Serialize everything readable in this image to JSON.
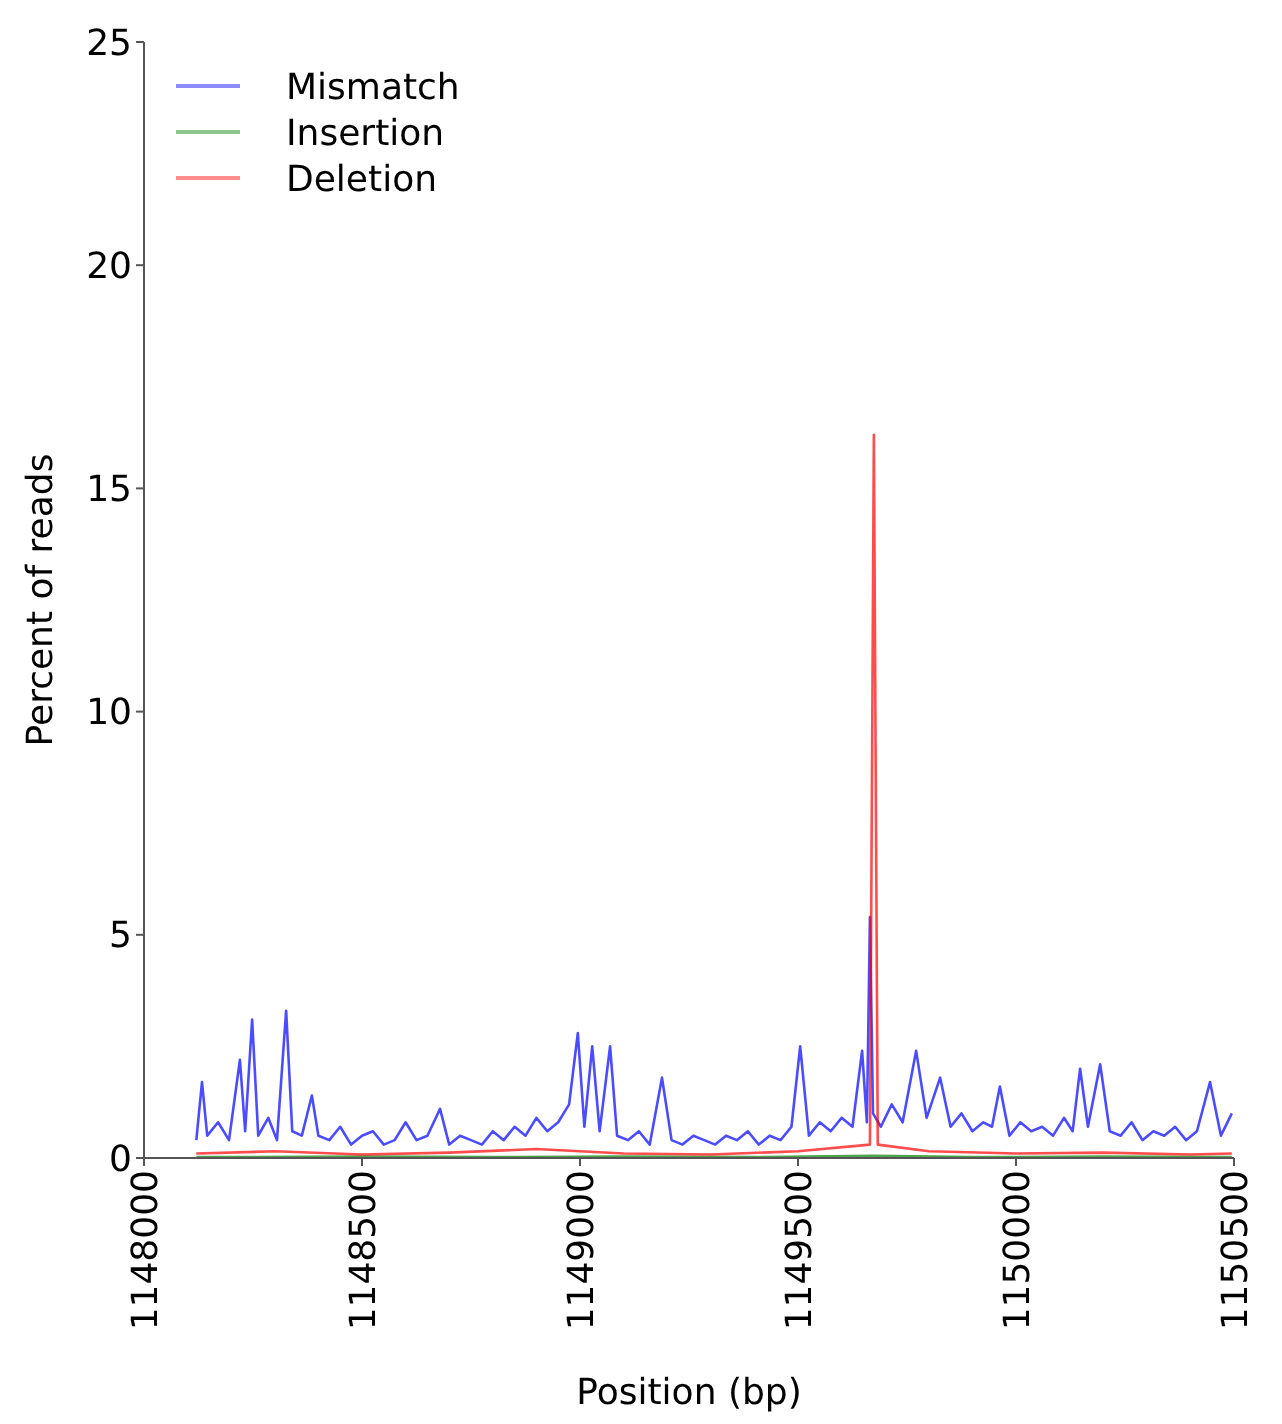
{
  "chart_data": {
    "type": "line",
    "xlabel": "Position (bp)",
    "ylabel": "Percent of reads",
    "xlim": [
      1148000,
      1150500
    ],
    "ylim": [
      0,
      25
    ],
    "xticks": [
      1148000,
      1148500,
      1149000,
      1149500,
      1150000,
      1150500
    ],
    "yticks": [
      0,
      5,
      10,
      15,
      20,
      25
    ],
    "grid": false,
    "legend": "top left",
    "marker": "none",
    "line_style": "solid",
    "series": [
      {
        "name": "Mismatch",
        "color": "#0000ff",
        "x": [
          1148120,
          1148133,
          1148145,
          1148170,
          1148195,
          1148220,
          1148232,
          1148248,
          1148262,
          1148285,
          1148305,
          1148326,
          1148340,
          1148362,
          1148385,
          1148400,
          1148425,
          1148450,
          1148475,
          1148500,
          1148525,
          1148550,
          1148575,
          1148600,
          1148625,
          1148650,
          1148679,
          1148700,
          1148725,
          1148750,
          1148775,
          1148800,
          1148825,
          1148850,
          1148875,
          1148900,
          1148925,
          1148950,
          1148975,
          1148995,
          1149010,
          1149028,
          1149045,
          1149069,
          1149085,
          1149110,
          1149135,
          1149160,
          1149188,
          1149210,
          1149235,
          1149260,
          1149285,
          1149310,
          1149335,
          1149360,
          1149385,
          1149410,
          1149435,
          1149460,
          1149485,
          1149505,
          1149525,
          1149550,
          1149575,
          1149600,
          1149625,
          1149647,
          1149658,
          1149665,
          1149672,
          1149690,
          1149715,
          1149740,
          1149771,
          1149795,
          1149826,
          1149850,
          1149875,
          1149900,
          1149925,
          1149945,
          1149963,
          1149985,
          1150010,
          1150035,
          1150060,
          1150085,
          1150110,
          1150130,
          1150147,
          1150165,
          1150193,
          1150215,
          1150240,
          1150265,
          1150290,
          1150315,
          1150340,
          1150365,
          1150390,
          1150415,
          1150445,
          1150470,
          1150495
        ],
        "values": [
          0.4,
          1.7,
          0.5,
          0.8,
          0.4,
          2.2,
          0.6,
          3.1,
          0.5,
          0.9,
          0.4,
          3.3,
          0.6,
          0.5,
          1.4,
          0.5,
          0.4,
          0.7,
          0.3,
          0.5,
          0.6,
          0.3,
          0.4,
          0.8,
          0.4,
          0.5,
          1.1,
          0.3,
          0.5,
          0.4,
          0.3,
          0.6,
          0.4,
          0.7,
          0.5,
          0.9,
          0.6,
          0.8,
          1.2,
          2.8,
          0.7,
          2.5,
          0.6,
          2.5,
          0.5,
          0.4,
          0.6,
          0.3,
          1.8,
          0.4,
          0.3,
          0.5,
          0.4,
          0.3,
          0.5,
          0.4,
          0.6,
          0.3,
          0.5,
          0.4,
          0.7,
          2.5,
          0.5,
          0.8,
          0.6,
          0.9,
          0.7,
          2.4,
          0.8,
          5.4,
          1.0,
          0.7,
          1.2,
          0.8,
          2.4,
          0.9,
          1.8,
          0.7,
          1.0,
          0.6,
          0.8,
          0.7,
          1.6,
          0.5,
          0.8,
          0.6,
          0.7,
          0.5,
          0.9,
          0.6,
          2.0,
          0.7,
          2.1,
          0.6,
          0.5,
          0.8,
          0.4,
          0.6,
          0.5,
          0.7,
          0.4,
          0.6,
          1.7,
          0.5,
          1.0
        ]
      },
      {
        "name": "Insertion",
        "color": "#008000",
        "x": [
          1148120,
          1148500,
          1148800,
          1149100,
          1149400,
          1149674,
          1149900,
          1150200,
          1150495
        ],
        "values": [
          0.02,
          0.03,
          0.02,
          0.03,
          0.02,
          0.05,
          0.02,
          0.03,
          0.02
        ]
      },
      {
        "name": "Deletion",
        "color": "#ff0000",
        "x": [
          1148120,
          1148300,
          1148500,
          1148700,
          1148900,
          1149100,
          1149300,
          1149500,
          1149665,
          1149674,
          1149683,
          1149800,
          1150000,
          1150200,
          1150400,
          1150495
        ],
        "values": [
          0.1,
          0.15,
          0.08,
          0.12,
          0.2,
          0.1,
          0.08,
          0.15,
          0.3,
          16.2,
          0.3,
          0.15,
          0.1,
          0.12,
          0.08,
          0.1
        ]
      }
    ]
  }
}
